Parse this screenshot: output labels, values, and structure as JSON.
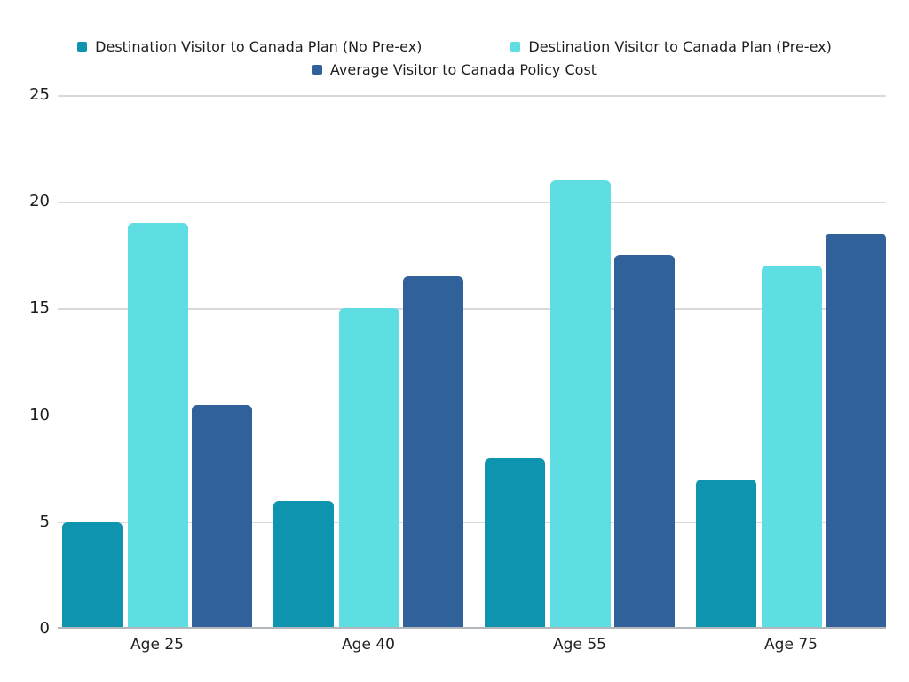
{
  "chart_data": {
    "type": "bar",
    "title": "",
    "xlabel": "",
    "ylabel": "",
    "categories": [
      "Age 25",
      "Age 40",
      "Age 55",
      "Age 75"
    ],
    "series": [
      {
        "name": "Destination Visitor to Canada Plan (No Pre-ex)",
        "color": "#0e94ae",
        "values": [
          5,
          6,
          8,
          7
        ]
      },
      {
        "name": "Destination Visitor to Canada Plan (Pre-ex)",
        "color": "#5edee3",
        "values": [
          19,
          15,
          21,
          17
        ]
      },
      {
        "name": "Average Visitor to Canada Policy Cost",
        "color": "#31619b",
        "values": [
          10.5,
          16.5,
          17.5,
          18.5
        ]
      }
    ],
    "ylim": [
      0,
      25
    ],
    "yticks": [
      0,
      5,
      10,
      15,
      20,
      25
    ],
    "grid": "horizontal",
    "legend_position": "top-center",
    "colors": {
      "gridline": "#d9d9d9",
      "axis_line": "#b3b8bc",
      "text": "#1e1e1e",
      "background": "#ffffff"
    }
  }
}
